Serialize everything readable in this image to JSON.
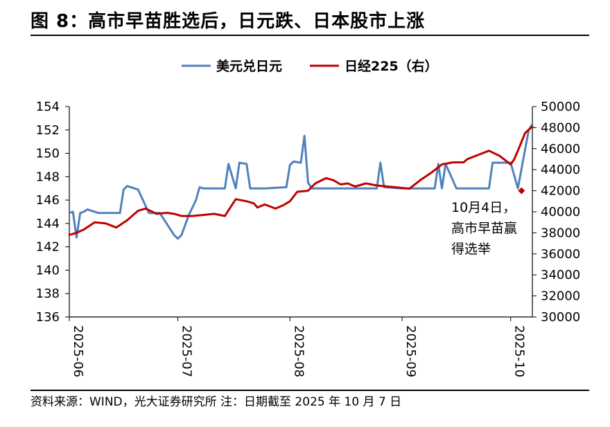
{
  "title": "图 8：高市早苗胜选后，日元跌、日本股市上涨",
  "source": "资料来源：WIND，光大证券研究所 注：日期截至 2025 年 10 月 7 日",
  "chart_data": {
    "type": "line",
    "title": "图 8：高市早苗胜选后，日元跌、日本股市上涨",
    "x_tick_labels": [
      "2025-06",
      "2025-07",
      "2025-08",
      "2025-09",
      "2025-10"
    ],
    "x_range": [
      "2025-06-01",
      "2025-10-07"
    ],
    "y_left": {
      "range": [
        136,
        154
      ],
      "ticks": [
        136,
        138,
        140,
        142,
        144,
        146,
        148,
        150,
        152,
        154
      ]
    },
    "y_right": {
      "range": [
        30000,
        50000
      ],
      "ticks": [
        30000,
        32000,
        34000,
        36000,
        38000,
        40000,
        42000,
        44000,
        46000,
        48000,
        50000
      ]
    },
    "legend_position": "top-center",
    "grid": false,
    "series": [
      {
        "name": "美元兑日元",
        "axis": "left",
        "color": "#4f81bd",
        "x": [
          "2025-06-01",
          "2025-06-02",
          "2025-06-03",
          "2025-06-04",
          "2025-06-05",
          "2025-06-06",
          "2025-06-09",
          "2025-06-12",
          "2025-06-15",
          "2025-06-16",
          "2025-06-17",
          "2025-06-20",
          "2025-06-23",
          "2025-06-24",
          "2025-06-25",
          "2025-06-26",
          "2025-06-30",
          "2025-07-01",
          "2025-07-02",
          "2025-07-04",
          "2025-07-06",
          "2025-07-07",
          "2025-07-08",
          "2025-07-09",
          "2025-07-10",
          "2025-07-12",
          "2025-07-14",
          "2025-07-15",
          "2025-07-17",
          "2025-07-18",
          "2025-07-20",
          "2025-07-21",
          "2025-07-22",
          "2025-07-23",
          "2025-07-24",
          "2025-07-25",
          "2025-07-31",
          "2025-08-01",
          "2025-08-02",
          "2025-08-04",
          "2025-08-05",
          "2025-08-06",
          "2025-08-07",
          "2025-08-08",
          "2025-08-10",
          "2025-08-25",
          "2025-08-26",
          "2025-08-27",
          "2025-09-01",
          "2025-09-10",
          "2025-09-11",
          "2025-09-12",
          "2025-09-13",
          "2025-09-16",
          "2025-09-17",
          "2025-09-18",
          "2025-09-24",
          "2025-09-25",
          "2025-09-26",
          "2025-09-29",
          "2025-09-30",
          "2025-10-01",
          "2025-10-03",
          "2025-10-06",
          "2025-10-07"
        ],
        "values": [
          144.9,
          145.0,
          142.8,
          144.9,
          145.0,
          145.2,
          144.9,
          144.9,
          144.9,
          146.9,
          147.2,
          146.9,
          144.9,
          144.9,
          144.9,
          144.9,
          143.0,
          142.7,
          143.0,
          144.7,
          146.0,
          147.1,
          147.0,
          147.0,
          147.0,
          147.0,
          147.0,
          149.1,
          147.0,
          149.2,
          149.1,
          147.0,
          147.0,
          147.0,
          147.0,
          147.0,
          147.1,
          149.0,
          149.3,
          149.2,
          151.5,
          147.5,
          147.0,
          147.0,
          147.0,
          147.0,
          149.2,
          147.1,
          147.0,
          147.0,
          149.1,
          147.0,
          149.1,
          147.0,
          147.0,
          147.0,
          147.0,
          147.0,
          149.2,
          149.2,
          149.2,
          149.2,
          147.0,
          152.0,
          152.5
        ]
      },
      {
        "name": "日经225（右）",
        "axis": "right",
        "color": "#c00000",
        "x": [
          "2025-06-01",
          "2025-06-03",
          "2025-06-05",
          "2025-06-08",
          "2025-06-11",
          "2025-06-14",
          "2025-06-17",
          "2025-06-20",
          "2025-06-22",
          "2025-06-24",
          "2025-06-25",
          "2025-06-28",
          "2025-06-30",
          "2025-07-02",
          "2025-07-05",
          "2025-07-08",
          "2025-07-11",
          "2025-07-14",
          "2025-07-17",
          "2025-07-20",
          "2025-07-22",
          "2025-07-23",
          "2025-07-25",
          "2025-07-28",
          "2025-07-30",
          "2025-08-01",
          "2025-08-03",
          "2025-08-06",
          "2025-08-08",
          "2025-08-11",
          "2025-08-13",
          "2025-08-15",
          "2025-08-17",
          "2025-08-19",
          "2025-08-22",
          "2025-08-25",
          "2025-08-28",
          "2025-08-31",
          "2025-09-03",
          "2025-09-06",
          "2025-09-09",
          "2025-09-12",
          "2025-09-15",
          "2025-09-18",
          "2025-09-19",
          "2025-09-22",
          "2025-09-25",
          "2025-09-28",
          "2025-10-01",
          "2025-10-02",
          "2025-10-03",
          "2025-10-05",
          "2025-10-07"
        ],
        "values": [
          37800,
          38000,
          38300,
          39000,
          38900,
          38500,
          39200,
          40100,
          40300,
          40000,
          39800,
          39900,
          39800,
          39600,
          39600,
          39700,
          39800,
          39600,
          41200,
          41000,
          40800,
          40400,
          40700,
          40300,
          40600,
          41000,
          41900,
          42000,
          42700,
          43200,
          43000,
          42600,
          42700,
          42400,
          42700,
          42500,
          42400,
          42300,
          42200,
          43000,
          43700,
          44500,
          44700,
          44700,
          45000,
          45400,
          45800,
          45300,
          44500,
          45000,
          45800,
          47500,
          48100
        ]
      }
    ],
    "annotations": [
      {
        "text": "10月4日，",
        "x": "2025-10-04",
        "value": 42000,
        "axis": "right",
        "marker": "diamond"
      },
      {
        "text": "高市早苗赢",
        "x": "2025-10-04",
        "value": 42000,
        "axis": "right"
      },
      {
        "text": "得选举",
        "x": "2025-10-04",
        "value": 42000,
        "axis": "right"
      }
    ]
  }
}
